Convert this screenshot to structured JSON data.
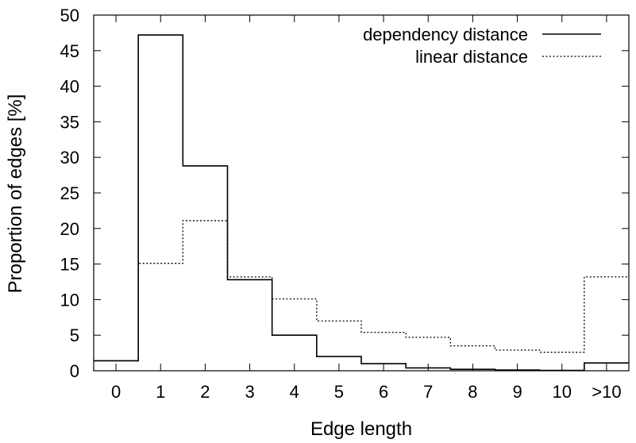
{
  "chart_data": {
    "type": "line",
    "step": true,
    "xlabel": "Edge length",
    "ylabel": "Proportion of edges [%]",
    "categories": [
      "0",
      "1",
      "2",
      "3",
      "4",
      "5",
      "6",
      "7",
      "8",
      "9",
      "10",
      ">10"
    ],
    "ylim": [
      0,
      50
    ],
    "yticks": [
      0,
      5,
      10,
      15,
      20,
      25,
      30,
      35,
      40,
      45,
      50
    ],
    "grid": false,
    "legend_position": "top-right",
    "series": [
      {
        "name": "dependency distance",
        "style": "solid",
        "values": [
          1.4,
          47.2,
          28.8,
          12.8,
          5.0,
          2.0,
          1.0,
          0.4,
          0.2,
          0.1,
          0.05,
          1.1
        ]
      },
      {
        "name": "linear distance",
        "style": "dotted",
        "values": [
          1.4,
          15.1,
          21.1,
          13.2,
          10.1,
          7.0,
          5.4,
          4.7,
          3.5,
          2.9,
          2.6,
          13.2
        ]
      }
    ]
  }
}
